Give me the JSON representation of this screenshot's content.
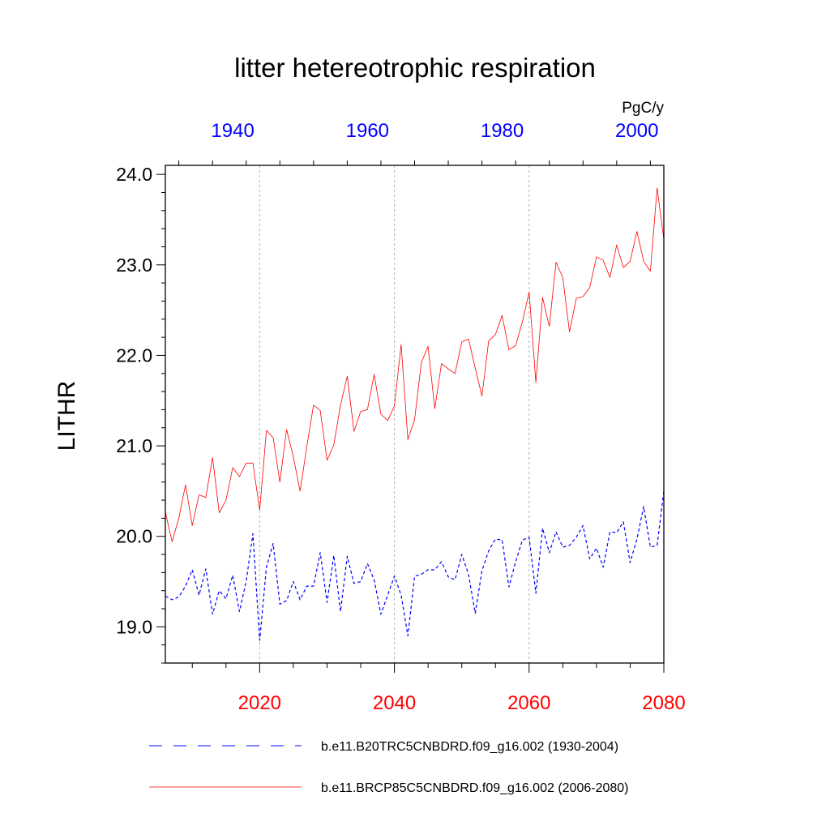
{
  "chart_data": {
    "type": "line",
    "title": "litter hetereotrophic respiration",
    "ylabel": "LITHR",
    "units": "PgC/y",
    "ylim": [
      18.6,
      24.1
    ],
    "yticks": [
      19.0,
      20.0,
      21.0,
      22.0,
      23.0,
      24.0
    ],
    "ytick_labels": [
      "19.0",
      "20.0",
      "21.0",
      "22.0",
      "23.0",
      "24.0"
    ],
    "grid": "vertical dotted lines at bottom-axis major ticks",
    "legend_position": "bottom",
    "x_bottom": {
      "range": [
        2006,
        2080
      ],
      "ticks": [
        2020,
        2040,
        2060,
        2080
      ],
      "tick_labels": [
        "2020",
        "2040",
        "2060",
        "2080"
      ],
      "color": "#ff0000"
    },
    "x_top": {
      "range": [
        1930,
        2004
      ],
      "ticks": [
        1940,
        1960,
        1980,
        2000
      ],
      "tick_labels": [
        "1940",
        "1960",
        "1980",
        "2000"
      ],
      "color": "#0000ff"
    },
    "series": [
      {
        "name": "b.e11.B20TRC5CNBDRD.f09_g16.002 (1930-2004)",
        "color": "#0000ff",
        "dash": "dashed",
        "x_start": 1930,
        "axis": "top",
        "values": [
          19.34,
          19.3,
          19.33,
          19.45,
          19.63,
          19.35,
          19.64,
          19.14,
          19.4,
          19.31,
          19.57,
          19.17,
          19.5,
          20.03,
          18.85,
          19.66,
          19.92,
          19.25,
          19.29,
          19.5,
          19.3,
          19.45,
          19.45,
          19.82,
          19.27,
          19.79,
          19.17,
          19.78,
          19.48,
          19.5,
          19.7,
          19.52,
          19.14,
          19.35,
          19.56,
          19.35,
          18.9,
          19.56,
          19.58,
          19.63,
          19.63,
          19.72,
          19.55,
          19.52,
          19.8,
          19.58,
          19.15,
          19.62,
          19.84,
          19.97,
          19.96,
          19.44,
          19.72,
          19.96,
          19.99,
          19.37,
          20.09,
          19.82,
          20.05,
          19.88,
          19.9,
          19.99,
          20.12,
          19.75,
          19.87,
          19.66,
          20.05,
          20.04,
          20.16,
          19.71,
          19.97,
          20.33,
          19.88,
          19.9,
          20.5
        ]
      },
      {
        "name": "b.e11.BRCP85C5CNBDRD.f09_g16.002 (2006-2080)",
        "color": "#ff0000",
        "dash": "solid",
        "x_start": 2006,
        "axis": "bottom",
        "values": [
          20.27,
          19.94,
          20.2,
          20.57,
          20.12,
          20.46,
          20.43,
          20.87,
          20.26,
          20.4,
          20.76,
          20.66,
          20.81,
          20.81,
          20.29,
          21.17,
          21.09,
          20.6,
          21.18,
          20.88,
          20.5,
          20.99,
          21.45,
          21.39,
          20.84,
          21.01,
          21.45,
          21.77,
          21.16,
          21.38,
          21.4,
          21.79,
          21.35,
          21.28,
          21.44,
          22.12,
          21.07,
          21.29,
          21.92,
          22.1,
          21.41,
          21.91,
          21.85,
          21.8,
          22.15,
          22.18,
          21.86,
          21.55,
          22.16,
          22.23,
          22.44,
          22.06,
          22.11,
          22.37,
          22.7,
          21.7,
          22.64,
          22.32,
          23.03,
          22.86,
          22.26,
          22.63,
          22.65,
          22.75,
          23.09,
          23.05,
          22.86,
          23.22,
          22.97,
          23.04,
          23.37,
          23.04,
          22.93,
          23.85,
          23.28
        ]
      }
    ]
  }
}
